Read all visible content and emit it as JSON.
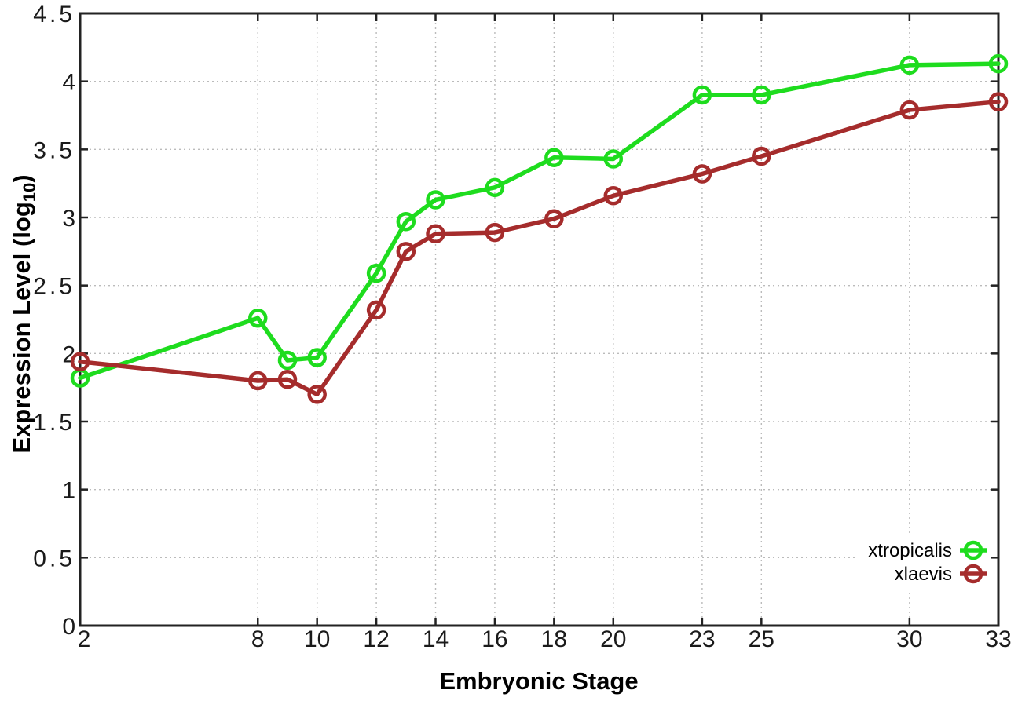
{
  "chart_data": {
    "type": "line",
    "title": "",
    "xlabel": "Embryonic Stage",
    "ylabel": "Expression Level (log10)",
    "ylabel_base": "Expression Level (log",
    "ylabel_sub": "10",
    "ylabel_close": ")",
    "x": [
      2,
      8,
      9,
      10,
      12,
      13,
      14,
      16,
      18,
      20,
      23,
      25,
      30,
      33
    ],
    "xlim": [
      2,
      33
    ],
    "ylim": [
      0,
      4.5
    ],
    "x_tick_labels": [
      "2",
      "8",
      "10",
      "12",
      "14",
      "16",
      "18",
      "20",
      "23",
      "25",
      "30",
      "33"
    ],
    "x_tick_values": [
      2,
      8,
      10,
      12,
      14,
      16,
      18,
      20,
      23,
      25,
      30,
      33
    ],
    "y_tick_labels": [
      "0",
      "0.5",
      "1",
      "1.5",
      "2",
      "2.5",
      "3",
      "3.5",
      "4",
      "4.5"
    ],
    "y_tick_values": [
      0,
      0.5,
      1,
      1.5,
      2,
      2.5,
      3,
      3.5,
      4,
      4.5
    ],
    "grid": true,
    "legend_position": "inside-bottom-right",
    "marker": "open-circle",
    "series": [
      {
        "name": "xtropicalis",
        "color": "#1edc1e",
        "values": [
          1.82,
          2.26,
          1.95,
          1.97,
          2.59,
          2.97,
          3.13,
          3.22,
          3.44,
          3.43,
          3.9,
          3.9,
          4.12,
          4.13
        ]
      },
      {
        "name": "xlaevis",
        "color": "#a52c2c",
        "values": [
          1.94,
          1.8,
          1.81,
          1.7,
          2.32,
          2.75,
          2.88,
          2.89,
          2.99,
          3.16,
          3.32,
          3.45,
          3.79,
          3.85
        ]
      }
    ]
  },
  "colors": {
    "background": "#ffffff",
    "axis": "#222222",
    "grid": "#bbbbbb",
    "tick_label": "#1a1a1a"
  }
}
